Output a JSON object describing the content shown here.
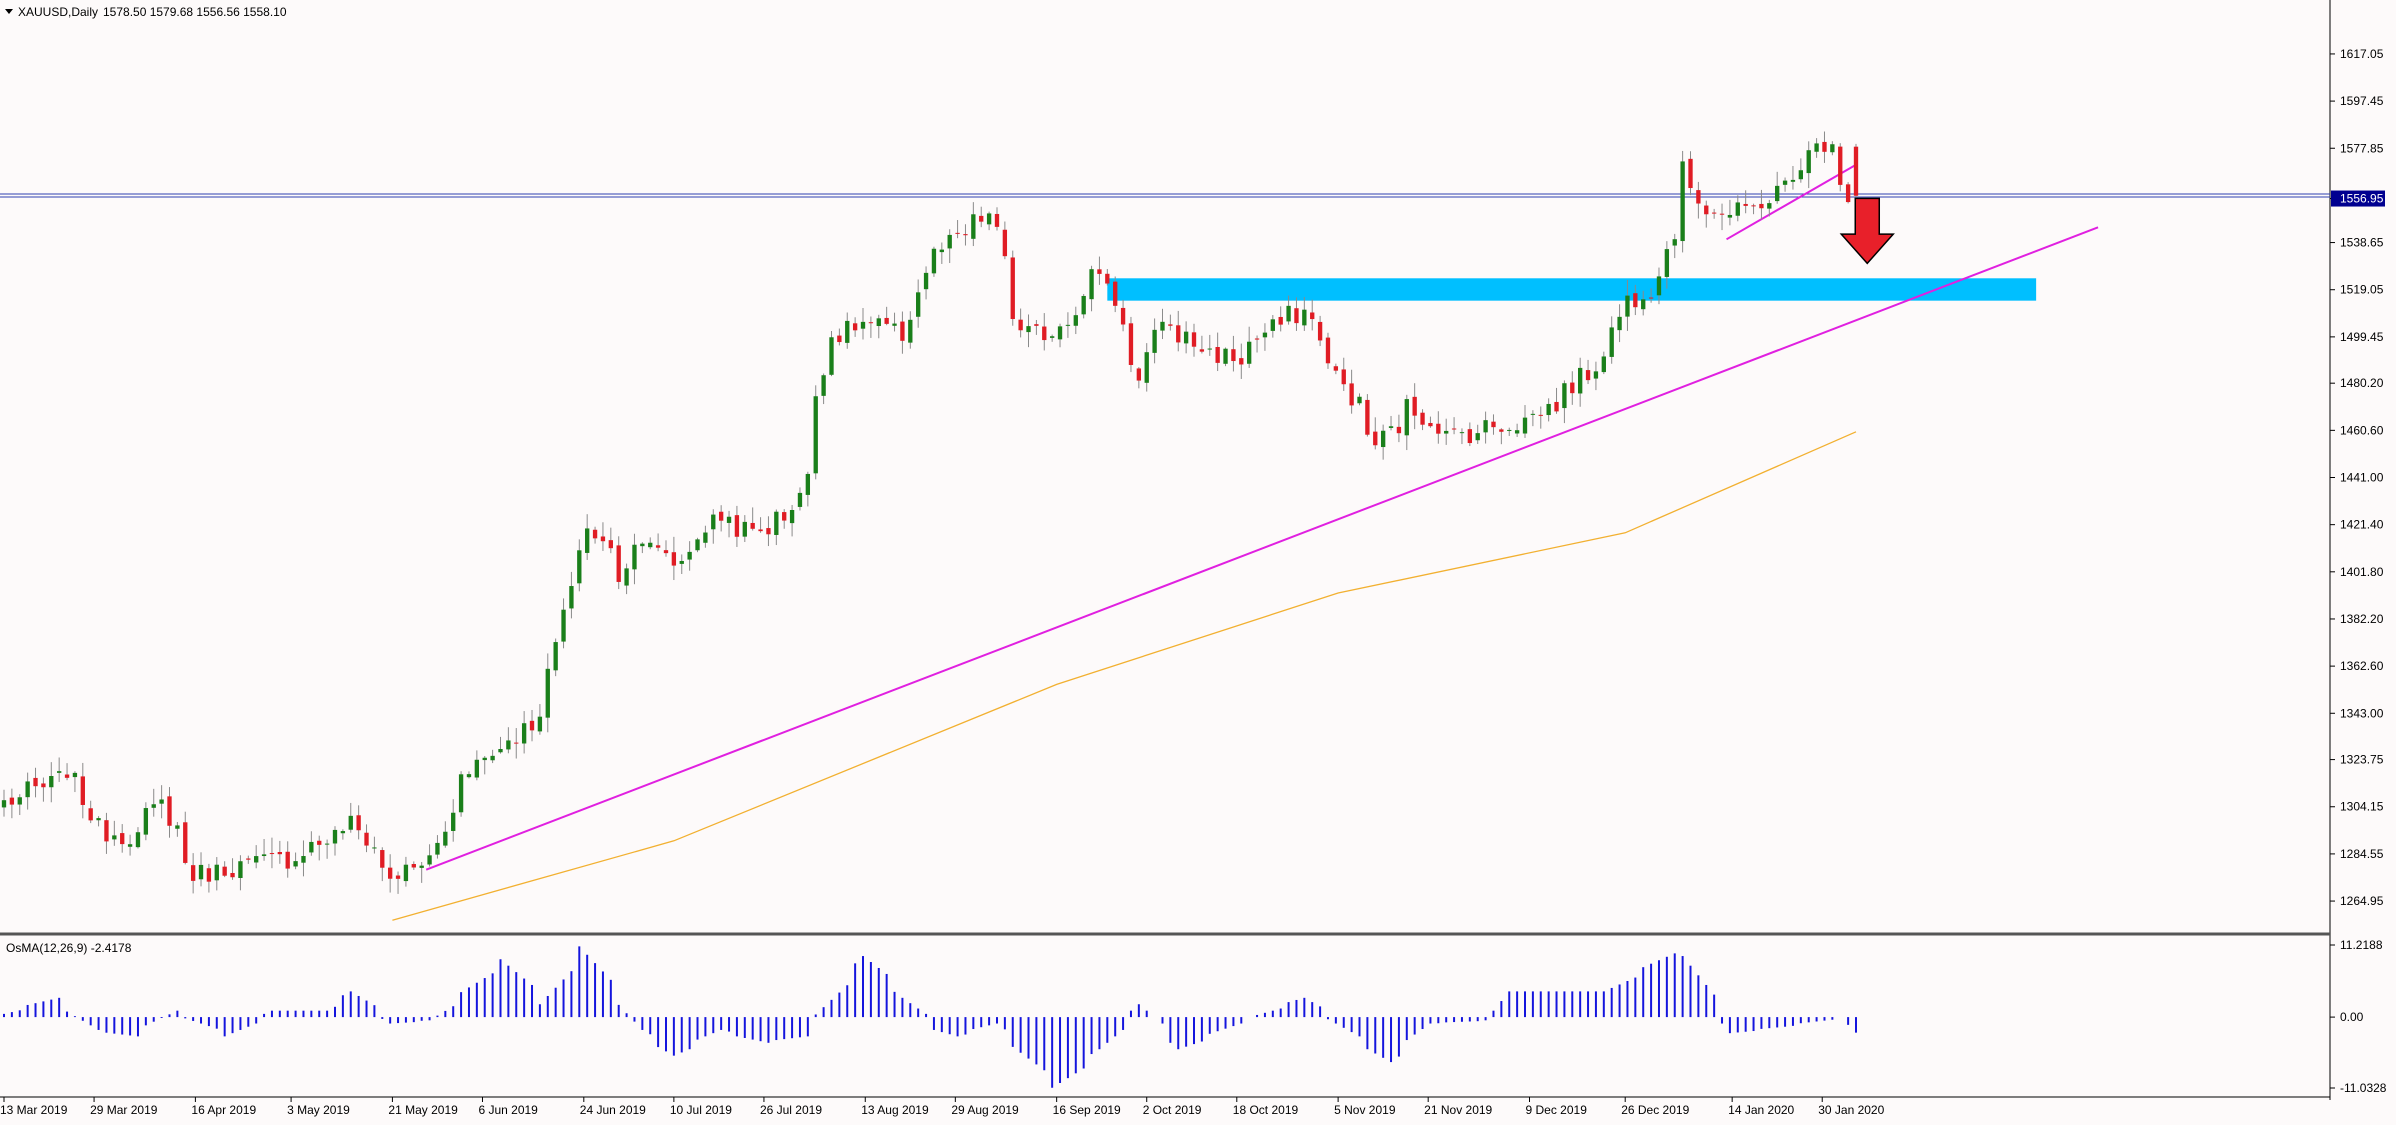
{
  "header": {
    "symbol_label": "XAUUSD,Daily",
    "ohlc_label": "1578.50 1579.68 1556.56 1558.10",
    "menu_glyph": "chevron-down-icon"
  },
  "indicator": {
    "label": "OsMA(12,26,9) -2.4178",
    "ticks": [
      "11.2188",
      "0.00",
      "-11.0328"
    ]
  },
  "price_axis": {
    "ticks": [
      "1617.05",
      "1597.45",
      "1577.85",
      "1556.95",
      "1538.65",
      "1519.05",
      "1499.45",
      "1480.20",
      "1460.60",
      "1441.00",
      "1421.40",
      "1401.80",
      "1382.20",
      "1362.60",
      "1343.00",
      "1323.75",
      "1304.15",
      "1284.55",
      "1264.95"
    ],
    "current_price": "1556.95"
  },
  "time_axis": {
    "labels": [
      "13 Mar 2019",
      "29 Mar 2019",
      "16 Apr 2019",
      "3 May 2019",
      "21 May 2019",
      "6 Jun 2019",
      "24 Jun 2019",
      "10 Jul 2019",
      "26 Jul 2019",
      "13 Aug 2019",
      "29 Aug 2019",
      "16 Sep 2019",
      "2 Oct 2019",
      "18 Oct 2019",
      "5 Nov 2019",
      "21 Nov 2019",
      "9 Dec 2019",
      "26 Dec 2019",
      "14 Jan 2020",
      "30 Jan 2020"
    ]
  },
  "chart_data": {
    "type": "candlestick",
    "symbol": "XAUUSD",
    "timeframe": "Daily",
    "x_range": [
      "13 Mar 2019",
      "05 Feb 2020"
    ],
    "ylim": [
      1255.0,
      1627.0
    ],
    "grid": false,
    "colors": {
      "background": "#fdfafa",
      "bull": "#1a7f1a",
      "bear": "#e01c24",
      "wick": "#8a8a8a",
      "trendline": "#e020e0",
      "moving_average": "#f2b030",
      "zone": "#00bfff",
      "arrow": "#e8202a",
      "histogram": "#1414dd",
      "horizontal_level": "#3040b0",
      "price_badge": "#000090"
    },
    "price_anchors": [
      [
        "13 Mar 2019",
        1306
      ],
      [
        "20 Mar 2019",
        1312
      ],
      [
        "25 Mar 2019",
        1320
      ],
      [
        "29 Mar 2019",
        1295
      ],
      [
        "5 Apr 2019",
        1292
      ],
      [
        "10 Apr 2019",
        1305
      ],
      [
        "16 Apr 2019",
        1276
      ],
      [
        "25 Apr 2019",
        1280
      ],
      [
        "3 May 2019",
        1283
      ],
      [
        "14 May 2019",
        1297
      ],
      [
        "21 May 2019",
        1275
      ],
      [
        "28 May 2019",
        1282
      ],
      [
        "3 Jun 2019",
        1320
      ],
      [
        "10 Jun 2019",
        1330
      ],
      [
        "17 Jun 2019",
        1345
      ],
      [
        "20 Jun 2019",
        1385
      ],
      [
        "25 Jun 2019",
        1420
      ],
      [
        "1 Jul 2019",
        1400
      ],
      [
        "4 Jul 2019",
        1418
      ],
      [
        "10 Jul 2019",
        1405
      ],
      [
        "18 Jul 2019",
        1425
      ],
      [
        "24 Jul 2019",
        1418
      ],
      [
        "30 Jul 2019",
        1425
      ],
      [
        "2 Aug 2019",
        1440
      ],
      [
        "7 Aug 2019",
        1500
      ],
      [
        "13 Aug 2019",
        1505
      ],
      [
        "20 Aug 2019",
        1500
      ],
      [
        "23 Aug 2019",
        1527
      ],
      [
        "29 Aug 2019",
        1540
      ],
      [
        "4 Sep 2019",
        1550
      ],
      [
        "10 Sep 2019",
        1500
      ],
      [
        "16 Sep 2019",
        1502
      ],
      [
        "24 Sep 2019",
        1528
      ],
      [
        "1 Oct 2019",
        1480
      ],
      [
        "4 Oct 2019",
        1508
      ],
      [
        "11 Oct 2019",
        1495
      ],
      [
        "18 Oct 2019",
        1490
      ],
      [
        "25 Oct 2019",
        1505
      ],
      [
        "30 Oct 2019",
        1510
      ],
      [
        "5 Nov 2019",
        1483
      ],
      [
        "12 Nov 2019",
        1455
      ],
      [
        "18 Nov 2019",
        1470
      ],
      [
        "25 Nov 2019",
        1458
      ],
      [
        "2 Dec 2019",
        1462
      ],
      [
        "9 Dec 2019",
        1465
      ],
      [
        "16 Dec 2019",
        1477
      ],
      [
        "23 Dec 2019",
        1495
      ],
      [
        "26 Dec 2019",
        1515
      ],
      [
        "31 Dec 2019",
        1520
      ],
      [
        "6 Jan 2020",
        1568
      ],
      [
        "9 Jan 2020",
        1553
      ],
      [
        "14 Jan 2020",
        1550
      ],
      [
        "21 Jan 2020",
        1557
      ],
      [
        "28 Jan 2020",
        1575
      ],
      [
        "31 Jan 2020",
        1583
      ],
      [
        "4 Feb 2020",
        1558
      ]
    ],
    "last_candle": {
      "open": 1578.5,
      "high": 1579.68,
      "low": 1556.56,
      "close": 1558.1
    },
    "moving_average_anchors": [
      [
        "21 May 2019",
        1257
      ],
      [
        "10 Jul 2019",
        1290
      ],
      [
        "16 Sep 2019",
        1355
      ],
      [
        "5 Nov 2019",
        1393
      ],
      [
        "26 Dec 2019",
        1418
      ],
      [
        "5 Feb 2020",
        1460
      ]
    ],
    "trendlines": [
      {
        "from": [
          "27 May 2019",
          1278
        ],
        "to": [
          "19 Mar 2020",
          1545
        ]
      },
      {
        "from": [
          "13 Jan 2020",
          1540
        ],
        "to": [
          "5 Feb 2020",
          1571
        ]
      }
    ],
    "horizontal_level": 1558.0,
    "resistance_zone": {
      "from": "25 Sep 2019",
      "to": "8 Mar 2020",
      "y_low": 1514.5,
      "y_high": 1523.8
    },
    "signal_arrow": {
      "date": "7 Feb 2020",
      "y_top": 1557,
      "y_bottom": 1530,
      "direction": "down"
    },
    "osma": {
      "params": "12,26,9",
      "last_value": -2.4178,
      "ylim": [
        -11.0328,
        11.2188
      ],
      "anchors": [
        [
          "13 Mar 2019",
          0.5
        ],
        [
          "22 Mar 2019",
          3
        ],
        [
          "29 Mar 2019",
          -2
        ],
        [
          "5 Apr 2019",
          -3
        ],
        [
          "12 Apr 2019",
          1
        ],
        [
          "22 Apr 2019",
          -3
        ],
        [
          "30 Apr 2019",
          1
        ],
        [
          "9 May 2019",
          1
        ],
        [
          "14 May 2019",
          4
        ],
        [
          "21 May 2019",
          -1
        ],
        [
          "28 May 2019",
          -0.5
        ],
        [
          "10 Jun 2019",
          9
        ],
        [
          "17 Jun 2019",
          2
        ],
        [
          "24 Jun 2019",
          11
        ],
        [
          "4 Jul 2019",
          -2
        ],
        [
          "10 Jul 2019",
          -6
        ],
        [
          "18 Jul 2019",
          -2
        ],
        [
          "26 Jul 2019",
          -4
        ],
        [
          "2 Aug 2019",
          -3
        ],
        [
          "13 Aug 2019",
          9.5
        ],
        [
          "20 Aug 2019",
          3
        ],
        [
          "26 Aug 2019",
          -2
        ],
        [
          "29 Aug 2019",
          -3
        ],
        [
          "5 Sep 2019",
          -1
        ],
        [
          "16 Sep 2019",
          -11
        ],
        [
          "24 Sep 2019",
          -5
        ],
        [
          "1 Oct 2019",
          2
        ],
        [
          "8 Oct 2019",
          -5
        ],
        [
          "18 Oct 2019",
          -1
        ],
        [
          "30 Oct 2019",
          3
        ],
        [
          "5 Nov 2019",
          -1
        ],
        [
          "14 Nov 2019",
          -7
        ],
        [
          "21 Nov 2019",
          -1
        ],
        [
          "2 Dec 2019",
          -0.5
        ],
        [
          "5 Dec 2019",
          4
        ],
        [
          "16 Dec 2019",
          4
        ],
        [
          "23 Dec 2019",
          4
        ],
        [
          "5 Jan 2020",
          11
        ],
        [
          "14 Jan 2020",
          -2.5
        ],
        [
          "23 Jan 2020",
          -1.5
        ],
        [
          "3 Feb 2020",
          0
        ],
        [
          "5 Feb 2020",
          -2.4178
        ]
      ]
    }
  }
}
